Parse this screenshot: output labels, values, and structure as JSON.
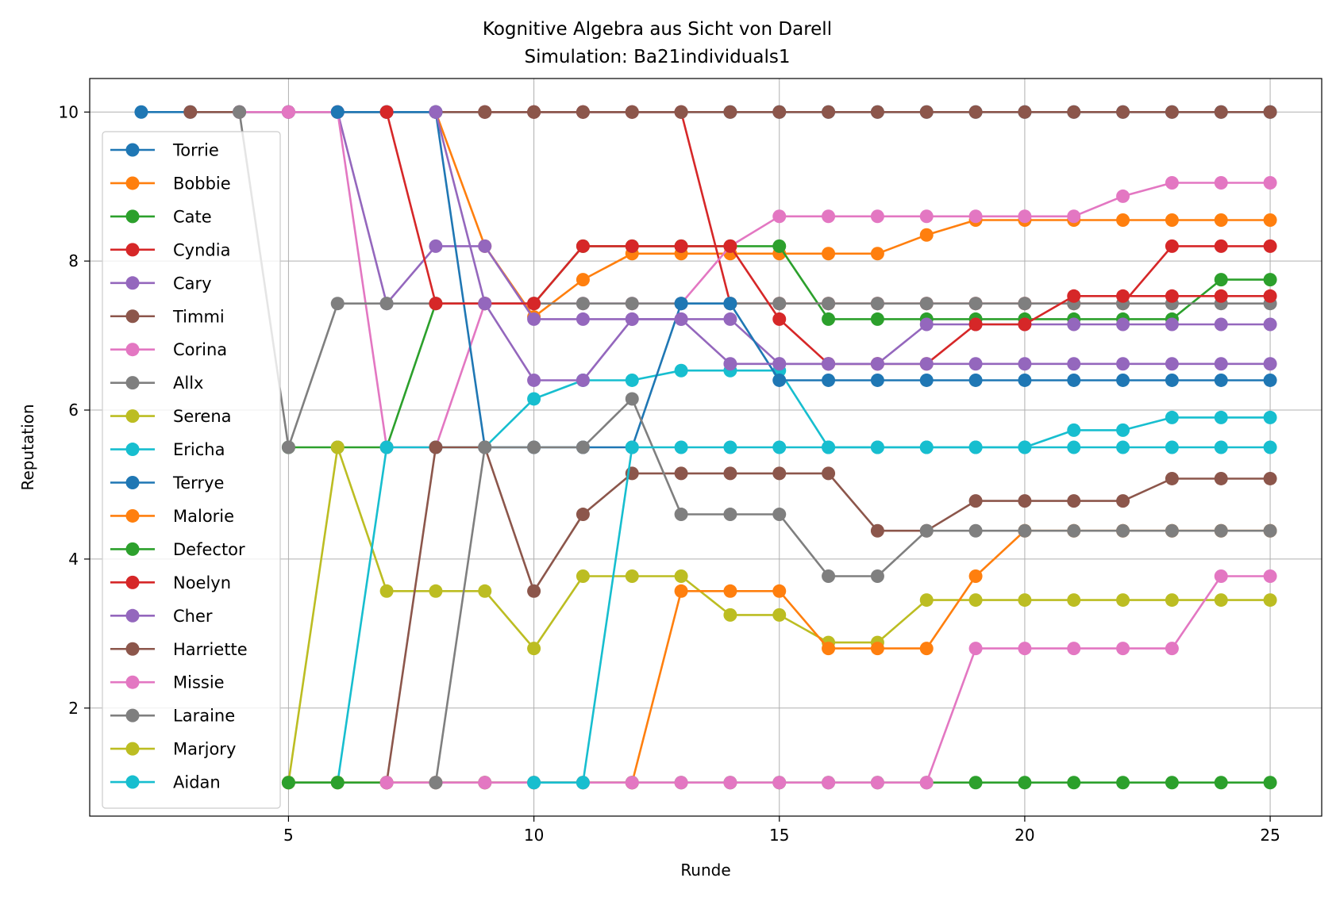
{
  "chart_data": {
    "type": "line",
    "title": "Kognitive Algebra aus Sicht von Darell",
    "subtitle": "Simulation: Ba21individuals1",
    "xlabel": "Runde",
    "ylabel": "Reputation",
    "xlim": [
      0.95,
      26.05
    ],
    "ylim": [
      0.55,
      10.45
    ],
    "xticks": [
      5,
      10,
      15,
      20,
      25
    ],
    "yticks": [
      2,
      4,
      6,
      8,
      10
    ],
    "grid": true,
    "legend_position": "left",
    "series": [
      {
        "name": "Torrie",
        "color": "#1f77b4",
        "x": [
          2,
          3,
          4,
          5,
          6,
          7,
          8,
          9,
          10,
          11,
          12,
          13,
          14,
          15,
          16,
          17,
          18,
          19,
          20,
          21,
          22,
          23,
          24,
          25
        ],
        "y": [
          10,
          10,
          10,
          10,
          10,
          10,
          10,
          10,
          10,
          10,
          10,
          10,
          10,
          10,
          10,
          10,
          10,
          10,
          10,
          10,
          10,
          10,
          10,
          10
        ]
      },
      {
        "name": "Bobbie",
        "color": "#ff7f0e",
        "x": [
          8,
          9,
          10,
          11,
          12,
          13,
          14,
          15,
          16,
          17,
          18,
          19,
          20,
          21,
          22,
          23,
          24,
          25
        ],
        "y": [
          10,
          8.2,
          7.25,
          7.75,
          8.1,
          8.1,
          8.1,
          8.1,
          8.1,
          8.1,
          8.35,
          8.55,
          8.55,
          8.55,
          8.55,
          8.55,
          8.55,
          8.55
        ]
      },
      {
        "name": "Cate",
        "color": "#2ca02c",
        "x": [
          5,
          6,
          7,
          8,
          9,
          10,
          11,
          12,
          13,
          14,
          15,
          16,
          17,
          18,
          19,
          20,
          21,
          22,
          23,
          24,
          25
        ],
        "y": [
          5.5,
          5.5,
          5.5,
          7.43,
          7.43,
          7.43,
          8.2,
          8.2,
          8.2,
          8.2,
          8.2,
          7.22,
          7.22,
          7.22,
          7.22,
          7.22,
          7.22,
          7.22,
          7.22,
          7.75,
          7.75
        ]
      },
      {
        "name": "Cyndia",
        "color": "#d62728",
        "x": [
          9,
          10,
          11,
          12,
          13,
          14,
          15,
          16,
          17,
          18,
          19,
          20,
          21,
          22,
          23,
          24,
          25
        ],
        "y": [
          10,
          10,
          10,
          10,
          10,
          7.43,
          7.43,
          7.43,
          7.43,
          7.43,
          7.43,
          7.43,
          7.43,
          7.43,
          8.2,
          8.2,
          8.2
        ]
      },
      {
        "name": "Cary",
        "color": "#9467bd",
        "x": [
          6,
          7,
          8,
          9,
          10,
          11,
          12,
          13,
          14,
          15,
          16,
          17,
          18,
          19,
          20,
          21,
          22,
          23,
          24,
          25
        ],
        "y": [
          10,
          7.43,
          8.2,
          8.2,
          7.22,
          7.22,
          7.22,
          7.22,
          7.22,
          6.62,
          6.62,
          6.62,
          7.15,
          7.15,
          7.15,
          7.15,
          7.15,
          7.15,
          7.15,
          7.15
        ]
      },
      {
        "name": "Timmi",
        "color": "#8c564b",
        "x": [
          3,
          4,
          5,
          6,
          7,
          8,
          9,
          10,
          11,
          12,
          13,
          14,
          15,
          16,
          17,
          18,
          19,
          20,
          21,
          22,
          23,
          24,
          25
        ],
        "y": [
          10,
          10,
          10,
          10,
          10,
          10,
          10,
          10,
          10,
          10,
          10,
          10,
          10,
          10,
          10,
          10,
          10,
          10,
          10,
          10,
          10,
          10,
          10
        ]
      },
      {
        "name": "Corina",
        "color": "#e377c2",
        "x": [
          4,
          5,
          6,
          7,
          8,
          9,
          10,
          11,
          12,
          13,
          14,
          15,
          16,
          17,
          18,
          19,
          20,
          21,
          22,
          23,
          24,
          25
        ],
        "y": [
          10,
          10,
          10,
          5.5,
          5.5,
          7.43,
          7.43,
          7.43,
          7.43,
          7.43,
          8.2,
          8.6,
          8.6,
          8.6,
          8.6,
          8.6,
          8.6,
          8.6,
          8.87,
          9.05,
          9.05,
          9.05
        ]
      },
      {
        "name": "Allx",
        "color": "#7f7f7f",
        "x": [
          4,
          5,
          6,
          7,
          8,
          9,
          10,
          11,
          12,
          13,
          14,
          15,
          16,
          17,
          18,
          19,
          20,
          21,
          22,
          23,
          24,
          25
        ],
        "y": [
          10,
          5.5,
          7.43,
          7.43,
          7.43,
          7.43,
          7.43,
          7.43,
          7.43,
          7.43,
          7.43,
          7.43,
          7.43,
          7.43,
          7.43,
          7.43,
          7.43,
          7.43,
          7.43,
          7.43,
          7.43,
          7.43
        ]
      },
      {
        "name": "Serena",
        "color": "#bcbd22",
        "x": [
          5,
          6,
          7,
          8,
          9,
          10,
          11,
          12,
          13,
          14,
          15,
          16,
          17,
          18,
          19,
          20,
          21,
          22,
          23,
          24,
          25
        ],
        "y": [
          1,
          5.5,
          3.57,
          3.57,
          3.57,
          2.8,
          3.77,
          3.77,
          3.77,
          3.25,
          3.25,
          2.88,
          2.88,
          3.45,
          3.45,
          3.45,
          3.45,
          3.45,
          3.45,
          3.45,
          3.45
        ]
      },
      {
        "name": "Ericha",
        "color": "#17becf",
        "x": [
          5,
          6,
          7,
          8,
          9,
          10,
          11,
          12,
          13,
          14,
          15,
          16,
          17,
          18,
          19,
          20,
          21,
          22,
          23,
          24,
          25
        ],
        "y": [
          1,
          1,
          5.5,
          5.5,
          5.5,
          6.15,
          6.4,
          6.4,
          6.53,
          6.53,
          6.53,
          5.5,
          5.5,
          5.5,
          5.5,
          5.5,
          5.5,
          5.5,
          5.5,
          5.5,
          5.5
        ]
      },
      {
        "name": "Terrye",
        "color": "#1f77b4",
        "x": [
          6,
          7,
          8,
          9,
          10,
          11,
          12,
          13,
          14,
          15,
          16,
          17,
          18,
          19,
          20,
          21,
          22,
          23,
          24,
          25
        ],
        "y": [
          10,
          10,
          10,
          5.5,
          5.5,
          5.5,
          5.5,
          7.43,
          7.43,
          6.4,
          6.4,
          6.4,
          6.4,
          6.4,
          6.4,
          6.4,
          6.4,
          6.4,
          6.4,
          6.4
        ]
      },
      {
        "name": "Malorie",
        "color": "#ff7f0e",
        "x": [
          5,
          6,
          7,
          8,
          9,
          10,
          11,
          12,
          13,
          14,
          15,
          16,
          17,
          18,
          19,
          20,
          21,
          22,
          23,
          24,
          25
        ],
        "y": [
          1,
          1,
          1,
          1,
          1,
          1,
          1,
          1,
          3.57,
          3.57,
          3.57,
          2.8,
          2.8,
          2.8,
          3.77,
          4.38,
          4.38,
          4.38,
          4.38,
          4.38,
          4.38
        ]
      },
      {
        "name": "Defector",
        "color": "#2ca02c",
        "x": [
          5,
          6,
          7,
          8,
          9,
          10,
          11,
          12,
          13,
          14,
          15,
          16,
          17,
          18,
          19,
          20,
          21,
          22,
          23,
          24,
          25
        ],
        "y": [
          1,
          1,
          1,
          1,
          1,
          1,
          1,
          1,
          1,
          1,
          1,
          1,
          1,
          1,
          1,
          1,
          1,
          1,
          1,
          1,
          1
        ]
      },
      {
        "name": "Noelyn",
        "color": "#d62728",
        "x": [
          7,
          8,
          9,
          10,
          11,
          12,
          13,
          14,
          15,
          16,
          17,
          18,
          19,
          20,
          21,
          22,
          23,
          24,
          25
        ],
        "y": [
          10,
          7.43,
          7.43,
          7.43,
          8.2,
          8.2,
          8.2,
          8.2,
          7.22,
          6.62,
          6.62,
          6.62,
          7.15,
          7.15,
          7.53,
          7.53,
          7.53,
          7.53,
          7.53
        ]
      },
      {
        "name": "Cher",
        "color": "#9467bd",
        "x": [
          8,
          9,
          10,
          11,
          12,
          13,
          14,
          15,
          16,
          17,
          18,
          19,
          20,
          21,
          22,
          23,
          24,
          25
        ],
        "y": [
          10,
          7.43,
          6.4,
          6.4,
          7.22,
          7.22,
          6.62,
          6.62,
          6.62,
          6.62,
          6.62,
          6.62,
          6.62,
          6.62,
          6.62,
          6.62,
          6.62,
          6.62
        ]
      },
      {
        "name": "Harriette",
        "color": "#8c564b",
        "x": [
          7,
          8,
          9,
          10,
          11,
          12,
          13,
          14,
          15,
          16,
          17,
          18,
          19,
          20,
          21,
          22,
          23,
          24,
          25
        ],
        "y": [
          1,
          5.5,
          5.5,
          3.57,
          4.6,
          5.15,
          5.15,
          5.15,
          5.15,
          5.15,
          4.38,
          4.38,
          4.78,
          4.78,
          4.78,
          4.78,
          5.08,
          5.08,
          5.08
        ]
      },
      {
        "name": "Missie",
        "color": "#e377c2",
        "x": [
          7,
          8,
          9,
          10,
          11,
          12,
          13,
          14,
          15,
          16,
          17,
          18,
          19,
          20,
          21,
          22,
          23,
          24,
          25
        ],
        "y": [
          1,
          1,
          1,
          1,
          1,
          1,
          1,
          1,
          1,
          1,
          1,
          1,
          2.8,
          2.8,
          2.8,
          2.8,
          2.8,
          3.77,
          3.77
        ]
      },
      {
        "name": "Laraine",
        "color": "#7f7f7f",
        "x": [
          8,
          9,
          10,
          11,
          12,
          13,
          14,
          15,
          16,
          17,
          18,
          19,
          20,
          21,
          22,
          23,
          24,
          25
        ],
        "y": [
          1,
          5.5,
          5.5,
          5.5,
          6.15,
          4.6,
          4.6,
          4.6,
          3.77,
          3.77,
          4.38,
          4.38,
          4.38,
          4.38,
          4.38,
          4.38,
          4.38,
          4.38
        ]
      },
      {
        "name": "Marjory",
        "color": "#bcbd22",
        "x": [],
        "y": []
      },
      {
        "name": "Aidan",
        "color": "#17becf",
        "x": [
          10,
          11,
          12,
          13,
          14,
          15,
          16,
          17,
          18,
          19,
          20,
          21,
          22,
          23,
          24,
          25
        ],
        "y": [
          1,
          1,
          5.5,
          5.5,
          5.5,
          5.5,
          5.5,
          5.5,
          5.5,
          5.5,
          5.5,
          5.73,
          5.73,
          5.9,
          5.9,
          5.9
        ]
      }
    ]
  }
}
